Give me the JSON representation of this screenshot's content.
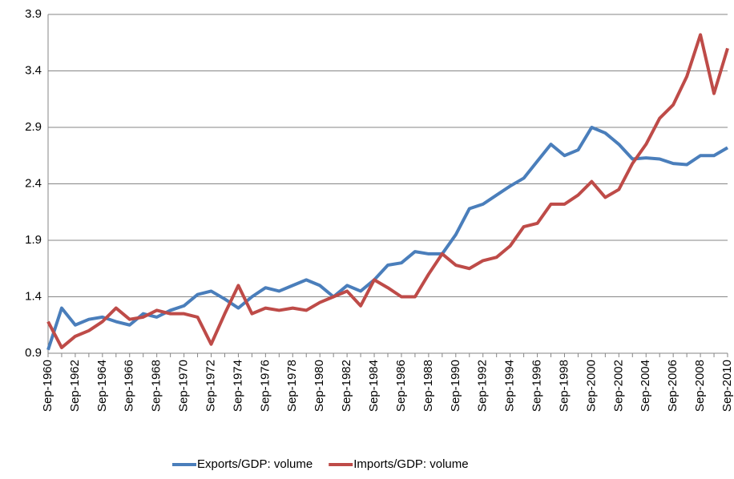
{
  "chart_data": {
    "type": "line",
    "categories": [
      "Sep-1960",
      null,
      "Sep-1962",
      null,
      "Sep-1964",
      null,
      "Sep-1966",
      null,
      "Sep-1968",
      null,
      "Sep-1970",
      null,
      "Sep-1972",
      null,
      "Sep-1974",
      null,
      "Sep-1976",
      null,
      "Sep-1978",
      null,
      "Sep-1980",
      null,
      "Sep-1982",
      null,
      "Sep-1984",
      null,
      "Sep-1986",
      null,
      "Sep-1988",
      null,
      "Sep-1990",
      null,
      "Sep-1992",
      null,
      "Sep-1994",
      null,
      "Sep-1996",
      null,
      "Sep-1998",
      null,
      "Sep-2000",
      null,
      "Sep-2002",
      null,
      "Sep-2004",
      null,
      "Sep-2006",
      null,
      "Sep-2008",
      null,
      "Sep-2010"
    ],
    "series": [
      {
        "name": "Exports/GDP: volume",
        "color": "#4a7ebb",
        "values": [
          0.93,
          1.3,
          1.15,
          1.2,
          1.22,
          1.18,
          1.15,
          1.25,
          1.22,
          1.28,
          1.32,
          1.42,
          1.45,
          1.38,
          1.3,
          1.4,
          1.48,
          1.45,
          1.5,
          1.55,
          1.5,
          1.4,
          1.5,
          1.45,
          1.55,
          1.68,
          1.7,
          1.8,
          1.78,
          1.78,
          1.95,
          2.18,
          2.22,
          2.3,
          2.38,
          2.45,
          2.6,
          2.75,
          2.65,
          2.7,
          2.9,
          2.85,
          2.75,
          2.62,
          2.63,
          2.62,
          2.58,
          2.57,
          2.65,
          2.65,
          2.72
        ]
      },
      {
        "name": "Imports/GDP: volume",
        "color": "#be4b48",
        "values": [
          1.18,
          0.95,
          1.05,
          1.1,
          1.18,
          1.3,
          1.2,
          1.22,
          1.28,
          1.25,
          1.25,
          1.22,
          0.98,
          1.25,
          1.5,
          1.25,
          1.3,
          1.28,
          1.3,
          1.28,
          1.35,
          1.4,
          1.45,
          1.32,
          1.55,
          1.48,
          1.4,
          1.4,
          1.6,
          1.78,
          1.68,
          1.65,
          1.72,
          1.75,
          1.85,
          2.02,
          2.05,
          2.22,
          2.22,
          2.3,
          2.42,
          2.28,
          2.35,
          2.58,
          2.75,
          2.98,
          3.1,
          3.35,
          3.72,
          3.2,
          3.6
        ]
      }
    ],
    "ylim": [
      0.9,
      3.9
    ],
    "yticks": [
      0.9,
      1.4,
      1.9,
      2.4,
      2.9,
      3.4,
      3.9
    ],
    "grid": true,
    "legend": "bottom"
  }
}
